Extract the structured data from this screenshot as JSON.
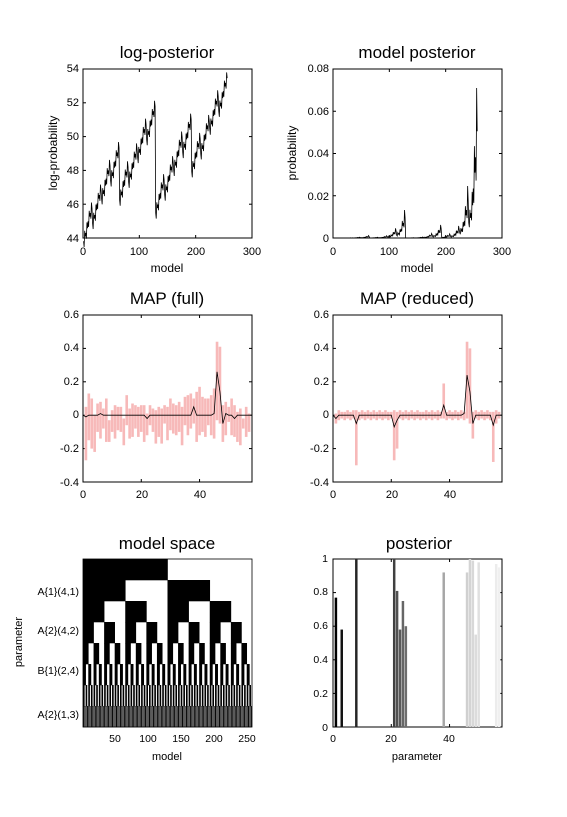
{
  "chart_data": [
    {
      "type": "line",
      "title": "log-posterior",
      "xlabel": "model",
      "ylabel": "log-probability",
      "xlim": [
        0,
        300
      ],
      "ylim": [
        44,
        54
      ],
      "xticks": [
        "0",
        "100",
        "200",
        "300"
      ],
      "yticks": [
        "44",
        "46",
        "48",
        "50",
        "52",
        "54"
      ],
      "n_models": 256,
      "series": [
        {
          "color": "#000000",
          "base": 46.5,
          "trend_per_model": 0.01,
          "bits_low_to_high": [
            -0.35,
            0.6,
            0.45,
            1.1,
            0.9,
            2.2,
            1.8,
            0.4
          ],
          "max": 53.8
        }
      ]
    },
    {
      "type": "line",
      "title": "model posterior",
      "xlabel": "model",
      "ylabel": "probability",
      "xlim": [
        0,
        300
      ],
      "ylim": [
        0,
        0.08
      ],
      "xticks": [
        "0",
        "100",
        "200",
        "300"
      ],
      "yticks": [
        "0",
        "0.02",
        "0.04",
        "0.06",
        "0.08"
      ],
      "n_models": 256,
      "series": [
        {
          "color": "#000000",
          "derived_from": "log-posterior (normalised exp)",
          "max": 0.071
        }
      ]
    },
    {
      "type": "bar",
      "title": "MAP (full)",
      "xlim": [
        0,
        58
      ],
      "ylim": [
        -0.4,
        0.6
      ],
      "xticks": [
        "0",
        "20",
        "40"
      ],
      "yticks": [
        "-0.4",
        "-0.2",
        "0",
        "0.2",
        "0.4",
        "0.6"
      ],
      "bar_color": "#f7b9b9",
      "line_color": "#000000",
      "x": [
        1,
        2,
        3,
        4,
        5,
        6,
        7,
        8,
        9,
        10,
        11,
        12,
        13,
        14,
        15,
        16,
        17,
        18,
        19,
        20,
        21,
        22,
        23,
        24,
        25,
        26,
        27,
        28,
        29,
        30,
        31,
        32,
        33,
        34,
        35,
        36,
        37,
        38,
        39,
        40,
        41,
        42,
        43,
        44,
        45,
        46,
        47,
        48,
        49,
        50,
        51,
        52,
        53,
        54,
        55,
        56,
        57
      ],
      "center": [
        -0.01,
        0.0,
        0.0,
        0.0,
        0.0,
        0.01,
        0.0,
        0.0,
        0.0,
        0.0,
        0.0,
        0.0,
        0.0,
        0.0,
        0.0,
        0.0,
        0.0,
        0.0,
        0.0,
        0.0,
        0.0,
        -0.02,
        0.0,
        0.0,
        0.0,
        0.0,
        0.0,
        0.0,
        0.0,
        0.0,
        0.0,
        0.0,
        0.0,
        0.0,
        0.0,
        0.0,
        0.0,
        0.05,
        0.0,
        0.0,
        0.0,
        0.0,
        0.0,
        0.0,
        0.01,
        0.26,
        0.14,
        -0.05,
        0.01,
        0.0,
        0.0,
        -0.02,
        0.0,
        0.0,
        0.0,
        0.0,
        0.0
      ],
      "upper": [
        0.05,
        0.13,
        0.1,
        0.0,
        0.07,
        0.08,
        0.04,
        0.1,
        -0.03,
        0.03,
        0.06,
        0.05,
        0.05,
        -0.02,
        0.12,
        0.04,
        0.07,
        0.06,
        0.05,
        0.06,
        0.06,
        0.01,
        0.06,
        0.04,
        0.03,
        0.05,
        0.04,
        0.06,
        0.05,
        0.1,
        0.07,
        0.06,
        0.08,
        0.05,
        0.11,
        0.12,
        0.13,
        0.1,
        0.14,
        0.17,
        0.11,
        0.1,
        0.1,
        0.12,
        0.16,
        0.44,
        0.41,
        0.06,
        0.08,
        0.05,
        0.1,
        0.06,
        0.02,
        0.04,
        -0.02,
        0.05,
        0.01
      ],
      "lower": [
        -0.27,
        -0.15,
        -0.2,
        -0.22,
        -0.1,
        -0.14,
        -0.08,
        -0.16,
        -0.16,
        -0.1,
        -0.14,
        -0.09,
        -0.1,
        -0.18,
        -0.06,
        -0.14,
        -0.13,
        -0.08,
        -0.13,
        -0.1,
        -0.16,
        -0.12,
        -0.06,
        -0.1,
        -0.17,
        -0.13,
        -0.17,
        -0.05,
        -0.15,
        -0.09,
        -0.11,
        -0.12,
        -0.1,
        -0.18,
        -0.06,
        -0.12,
        -0.08,
        -0.05,
        -0.16,
        -0.12,
        -0.1,
        -0.13,
        -0.06,
        -0.12,
        -0.14,
        -0.03,
        -0.05,
        -0.16,
        -0.12,
        -0.04,
        -0.12,
        -0.13,
        -0.16,
        -0.18,
        -0.08,
        -0.13,
        -0.1
      ]
    },
    {
      "type": "bar",
      "title": "MAP (reduced)",
      "xlim": [
        0,
        58
      ],
      "ylim": [
        -0.4,
        0.6
      ],
      "xticks": [
        "0",
        "20",
        "40"
      ],
      "yticks": [
        "-0.4",
        "-0.2",
        "0",
        "0.2",
        "0.4",
        "0.6"
      ],
      "bar_color": "#f7b9b9",
      "line_color": "#000000",
      "x": [
        1,
        2,
        3,
        4,
        5,
        6,
        7,
        8,
        9,
        10,
        11,
        12,
        13,
        14,
        15,
        16,
        17,
        18,
        19,
        20,
        21,
        22,
        23,
        24,
        25,
        26,
        27,
        28,
        29,
        30,
        31,
        32,
        33,
        34,
        35,
        36,
        37,
        38,
        39,
        40,
        41,
        42,
        43,
        44,
        45,
        46,
        47,
        48,
        49,
        50,
        51,
        52,
        53,
        54,
        55,
        56,
        57
      ],
      "center": [
        -0.02,
        0.0,
        0.0,
        0.0,
        0.0,
        0.0,
        0.0,
        -0.05,
        0.0,
        0.0,
        0.0,
        0.0,
        0.0,
        0.0,
        0.0,
        0.0,
        0.0,
        0.0,
        0.0,
        0.0,
        -0.07,
        -0.03,
        0.0,
        0.0,
        0.0,
        0.0,
        0.0,
        0.0,
        0.0,
        0.0,
        0.0,
        0.0,
        0.0,
        0.0,
        0.0,
        0.0,
        0.0,
        0.06,
        0.0,
        0.0,
        0.0,
        0.0,
        0.0,
        0.0,
        0.01,
        0.24,
        0.14,
        -0.05,
        0.0,
        0.0,
        0.0,
        0.0,
        0.0,
        0.0,
        -0.06,
        0.0,
        0.0
      ],
      "upper": [
        0.01,
        0.03,
        0.02,
        0.02,
        0.03,
        0.02,
        0.03,
        0.03,
        0.02,
        0.03,
        0.02,
        0.03,
        0.02,
        0.03,
        0.02,
        0.03,
        0.02,
        0.03,
        0.02,
        0.02,
        0.03,
        0.02,
        0.03,
        0.02,
        0.03,
        0.02,
        0.03,
        0.02,
        0.03,
        0.02,
        0.02,
        0.03,
        0.02,
        0.03,
        0.02,
        0.03,
        0.02,
        0.19,
        0.02,
        0.03,
        0.02,
        0.03,
        0.02,
        0.03,
        0.02,
        0.44,
        0.4,
        0.02,
        0.03,
        0.02,
        0.03,
        0.02,
        0.03,
        0.02,
        0.02,
        0.03,
        0.02
      ],
      "lower": [
        -0.05,
        -0.03,
        -0.02,
        -0.03,
        -0.02,
        -0.03,
        -0.02,
        -0.3,
        -0.03,
        -0.02,
        -0.03,
        -0.02,
        -0.03,
        -0.02,
        -0.03,
        -0.02,
        -0.03,
        -0.02,
        -0.03,
        -0.02,
        -0.27,
        -0.2,
        -0.02,
        -0.03,
        -0.02,
        -0.03,
        -0.02,
        -0.03,
        -0.02,
        -0.03,
        -0.02,
        -0.03,
        -0.02,
        -0.03,
        -0.02,
        -0.03,
        -0.02,
        -0.02,
        -0.03,
        -0.02,
        -0.03,
        -0.02,
        -0.03,
        -0.02,
        -0.03,
        -0.02,
        -0.05,
        -0.14,
        -0.02,
        -0.03,
        -0.02,
        -0.03,
        -0.02,
        -0.03,
        -0.28,
        -0.05,
        -0.02
      ]
    },
    {
      "type": "heatmap",
      "title": "model space",
      "xlabel": "model",
      "ylabel": "parameter",
      "xlim": [
        1,
        256
      ],
      "xticks": [
        "50",
        "100",
        "150",
        "200",
        "250"
      ],
      "yticks": [
        "A{1}(4,1)",
        "A{2}(4,2)",
        "B{1}(2,4)",
        "A{2}(1,3)"
      ],
      "n_rows": 8,
      "n_models": 256,
      "colors": [
        "#ffffff",
        "#000000"
      ]
    },
    {
      "type": "bar",
      "title": "posterior",
      "xlabel": "parameter",
      "xlim": [
        0,
        58
      ],
      "ylim": [
        0,
        1
      ],
      "xticks": [
        "0",
        "20",
        "40"
      ],
      "yticks": [
        "0",
        "0.2",
        "0.4",
        "0.6",
        "0.8",
        "1"
      ],
      "x": [
        1,
        3,
        8,
        21,
        22,
        23,
        24,
        25,
        38,
        46,
        47,
        48,
        49,
        50,
        56,
        57
      ],
      "values": [
        0.77,
        0.58,
        1.0,
        1.0,
        0.81,
        0.58,
        0.75,
        0.6,
        0.92,
        0.92,
        1.0,
        0.99,
        0.55,
        0.98,
        0.97,
        0.95
      ],
      "colors": [
        "#000000",
        "#111111",
        "#262626",
        "#404040",
        "#505050",
        "#595959",
        "#666666",
        "#6e6e6e",
        "#a6a6a6",
        "#d0d0d0",
        "#d4d4d4",
        "#d8d8d8",
        "#dcdcdc",
        "#e0e0e0",
        "#ececec",
        "#f0f0f0"
      ]
    }
  ]
}
